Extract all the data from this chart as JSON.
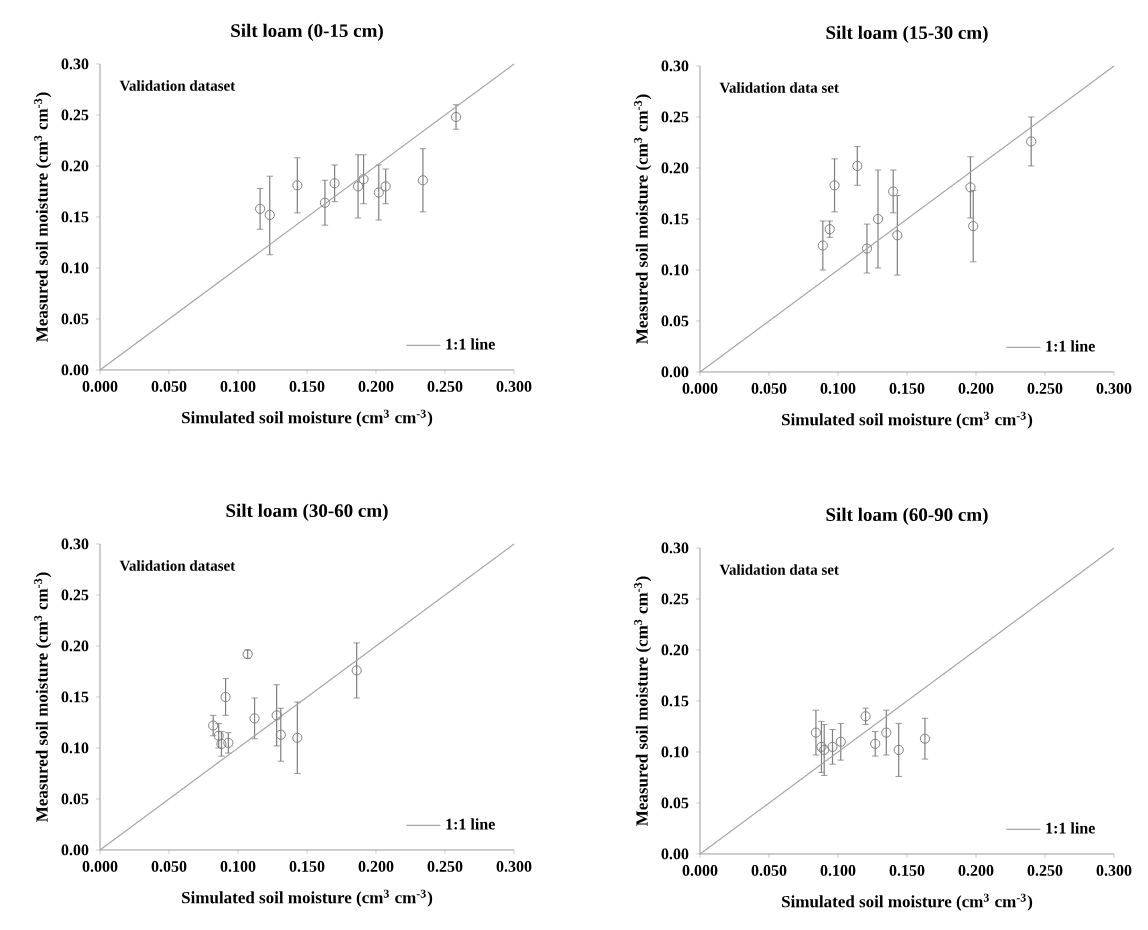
{
  "chart_data": [
    {
      "type": "scatter",
      "title": "Silt loam (0-15 cm)",
      "xlabel": "Simulated soil moisture (cm$^{3}$ cm$^{-3}$)",
      "ylabel": "Measured soil moisture (cm$^{3}$ cm$^{-3}$)",
      "annotations": [
        "Validation dataset"
      ],
      "legend": "bottom right",
      "xlim": [
        0,
        0.3
      ],
      "ylim": [
        0,
        0.3
      ],
      "xticks": [
        {
          "value": 0,
          "label": "0.000"
        },
        {
          "value": 0.05,
          "label": "0.050"
        },
        {
          "value": 0.1,
          "label": "0.100"
        },
        {
          "value": 0.15,
          "label": "0.150"
        },
        {
          "value": 0.2,
          "label": "0.200"
        },
        {
          "value": 0.25,
          "label": "0.250"
        },
        {
          "value": 0.3,
          "label": "0.300"
        }
      ],
      "yticks": [
        {
          "value": 0,
          "label": "0.00"
        },
        {
          "value": 0.05,
          "label": "0.05"
        },
        {
          "value": 0.1,
          "label": "0.10"
        },
        {
          "value": 0.15,
          "label": "0.15"
        },
        {
          "value": 0.2,
          "label": "0.20"
        },
        {
          "value": 0.25,
          "label": "0.25"
        },
        {
          "value": 0.3,
          "label": "0.30"
        }
      ],
      "series": [
        {
          "marker": "circle",
          "color": "#7f7f7f",
          "x": [
            0.116,
            0.123,
            0.143,
            0.163,
            0.17,
            0.187,
            0.191,
            0.202,
            0.207,
            0.234,
            0.258
          ],
          "values": [
            0.158,
            0.152,
            0.181,
            0.164,
            0.183,
            0.18,
            0.187,
            0.174,
            0.18,
            0.186,
            0.248
          ],
          "errors": [
            0.02,
            [
              0.113,
              0.19
            ],
            0.027,
            0.022,
            0.018,
            0.031,
            0.024,
            0.027,
            0.017,
            0.031,
            0.012
          ]
        },
        {
          "type": "line",
          "name": "1:1 line",
          "color": "#a6a6a6",
          "x": [
            0,
            0.3
          ],
          "values": [
            0,
            0.3
          ]
        }
      ]
    },
    {
      "type": "scatter",
      "title": "Silt loam (15-30 cm)",
      "xlabel": "Simulated soil moisture (cm$^{3}$ cm$^{-3}$)",
      "ylabel": "Measured soil moisture (cm$^{3}$ cm$^{-3}$)",
      "annotations": [
        "Validation data set"
      ],
      "legend": "bottom right",
      "xlim": [
        0,
        0.3
      ],
      "ylim": [
        0,
        0.3
      ],
      "xticks": [
        {
          "value": 0,
          "label": "0.000"
        },
        {
          "value": 0.05,
          "label": "0.050"
        },
        {
          "value": 0.1,
          "label": "0.100"
        },
        {
          "value": 0.15,
          "label": "0.150"
        },
        {
          "value": 0.2,
          "label": "0.200"
        },
        {
          "value": 0.25,
          "label": "0.250"
        },
        {
          "value": 0.3,
          "label": "0.300"
        }
      ],
      "yticks": [
        {
          "value": 0,
          "label": "0.00"
        },
        {
          "value": 0.05,
          "label": "0.05"
        },
        {
          "value": 0.1,
          "label": "0.10"
        },
        {
          "value": 0.15,
          "label": "0.15"
        },
        {
          "value": 0.2,
          "label": "0.20"
        },
        {
          "value": 0.25,
          "label": "0.25"
        },
        {
          "value": 0.3,
          "label": "0.30"
        }
      ],
      "series": [
        {
          "marker": "circle",
          "color": "#7f7f7f",
          "x": [
            0.089,
            0.094,
            0.0975,
            0.114,
            0.121,
            0.129,
            0.14,
            0.143,
            0.196,
            0.198,
            0.24
          ],
          "values": [
            0.124,
            0.14,
            0.183,
            0.202,
            0.121,
            0.15,
            0.177,
            0.134,
            0.181,
            0.143,
            0.226
          ],
          "errors": [
            0.024,
            0.008,
            0.026,
            0.019,
            0.024,
            0.048,
            0.021,
            0.039,
            0.03,
            0.035,
            0.024
          ]
        },
        {
          "type": "line",
          "name": "1:1 line",
          "color": "#a6a6a6",
          "x": [
            0,
            0.3
          ],
          "values": [
            0,
            0.3
          ]
        }
      ]
    },
    {
      "type": "scatter",
      "title": "Silt loam (30-60 cm)",
      "xlabel": "Simulated soil moisture (cm$^{3}$ cm$^{-3}$)",
      "ylabel": "Measured soil moisture (cm$^{3}$ cm$^{-3}$)",
      "annotations": [
        "Validation dataset"
      ],
      "legend": "bottom right",
      "xlim": [
        0,
        0.3
      ],
      "ylim": [
        0,
        0.3
      ],
      "xticks": [
        {
          "value": 0,
          "label": "0.000"
        },
        {
          "value": 0.05,
          "label": "0.050"
        },
        {
          "value": 0.1,
          "label": "0.100"
        },
        {
          "value": 0.15,
          "label": "0.150"
        },
        {
          "value": 0.2,
          "label": "0.200"
        },
        {
          "value": 0.25,
          "label": "0.250"
        },
        {
          "value": 0.3,
          "label": "0.300"
        }
      ],
      "yticks": [
        {
          "value": 0,
          "label": "0.00"
        },
        {
          "value": 0.05,
          "label": "0.05"
        },
        {
          "value": 0.1,
          "label": "0.10"
        },
        {
          "value": 0.15,
          "label": "0.15"
        },
        {
          "value": 0.2,
          "label": "0.20"
        },
        {
          "value": 0.25,
          "label": "0.25"
        },
        {
          "value": 0.3,
          "label": "0.30"
        }
      ],
      "series": [
        {
          "marker": "circle",
          "color": "#7f7f7f",
          "x": [
            0.082,
            0.086,
            0.088,
            0.091,
            0.093,
            0.107,
            0.112,
            0.128,
            0.131,
            0.143,
            0.186
          ],
          "values": [
            0.122,
            0.112,
            0.104,
            0.15,
            0.105,
            0.192,
            0.129,
            0.132,
            0.113,
            0.11,
            0.176
          ],
          "errors": [
            0.01,
            0.012,
            0.012,
            0.018,
            0.01,
            0.004,
            0.02,
            0.03,
            0.026,
            0.035,
            0.027
          ]
        },
        {
          "type": "line",
          "name": "1:1 line",
          "color": "#a6a6a6",
          "x": [
            0,
            0.3
          ],
          "values": [
            0,
            0.3
          ]
        }
      ]
    },
    {
      "type": "scatter",
      "title": "Silt loam (60-90 cm)",
      "xlabel": "Simulated soil moisture (cm$^{3}$ cm$^{-3}$)",
      "ylabel": "Measured soil moisture (cm$^{3}$ cm$^{-3}$)",
      "annotations": [
        "Validation data set"
      ],
      "legend": "bottom right",
      "xlim": [
        0,
        0.3
      ],
      "ylim": [
        0,
        0.3
      ],
      "xticks": [
        {
          "value": 0,
          "label": "0.000"
        },
        {
          "value": 0.05,
          "label": "0.050"
        },
        {
          "value": 0.1,
          "label": "0.100"
        },
        {
          "value": 0.15,
          "label": "0.150"
        },
        {
          "value": 0.2,
          "label": "0.200"
        },
        {
          "value": 0.25,
          "label": "0.250"
        },
        {
          "value": 0.3,
          "label": "0.300"
        }
      ],
      "yticks": [
        {
          "value": 0,
          "label": "0.00"
        },
        {
          "value": 0.05,
          "label": "0.05"
        },
        {
          "value": 0.1,
          "label": "0.10"
        },
        {
          "value": 0.15,
          "label": "0.15"
        },
        {
          "value": 0.2,
          "label": "0.20"
        },
        {
          "value": 0.25,
          "label": "0.25"
        },
        {
          "value": 0.3,
          "label": "0.30"
        }
      ],
      "series": [
        {
          "marker": "circle",
          "color": "#7f7f7f",
          "x": [
            0.084,
            0.088,
            0.09,
            0.096,
            0.102,
            0.12,
            0.127,
            0.135,
            0.144,
            0.163
          ],
          "values": [
            0.119,
            0.105,
            0.102,
            0.105,
            0.11,
            0.135,
            0.108,
            0.119,
            0.102,
            0.113
          ],
          "errors": [
            0.022,
            0.025,
            0.025,
            0.017,
            0.018,
            0.008,
            0.012,
            0.022,
            0.026,
            0.02
          ]
        },
        {
          "type": "line",
          "name": "1:1 line",
          "color": "#a6a6a6",
          "x": [
            0,
            0.3
          ],
          "values": [
            0,
            0.3
          ]
        }
      ]
    }
  ]
}
